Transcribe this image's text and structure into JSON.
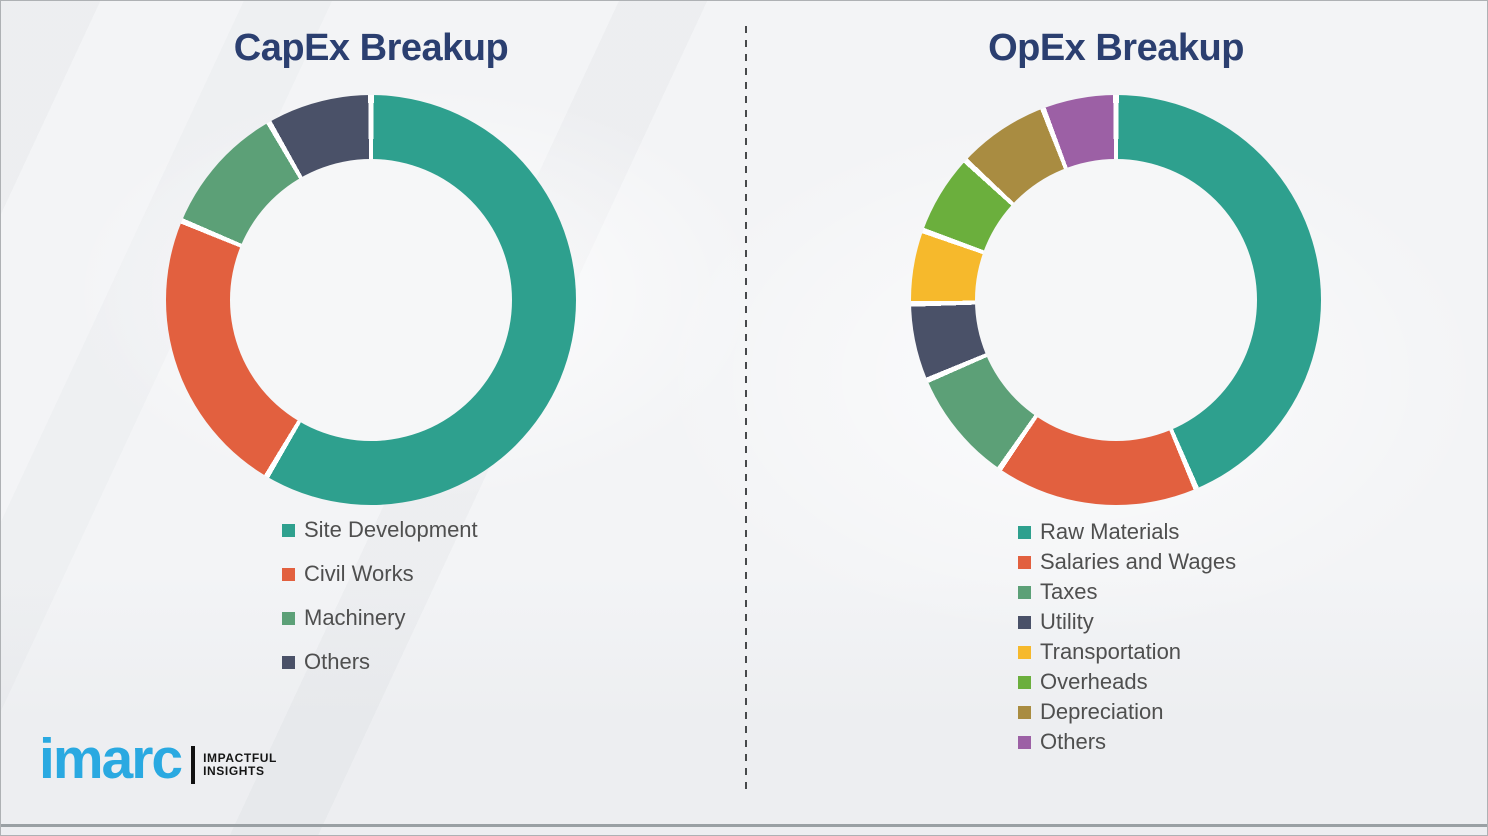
{
  "page": {
    "background_color": "#f3f4f6",
    "divider_style": "vertical dashed line",
    "divider_color": "#47494b",
    "bottom_rule_color": "#9aa0a4"
  },
  "titles": {
    "color": "#2b3f70"
  },
  "legend": {
    "text_color": "#4f4f4f"
  },
  "chart_data": [
    {
      "type": "pie",
      "variant": "donut",
      "title": "CapEx Breakup",
      "direction": "clockwise",
      "start_angle_deg": 0,
      "unit": "percent (estimated from arc angles, no labels shown)",
      "legend_position": "below",
      "categories": [
        "Site Development",
        "Civil Works",
        "Machinery",
        "Others"
      ],
      "values": [
        58.5,
        22.8,
        10.4,
        8.3
      ],
      "colors": [
        "#2ea08e",
        "#e2603f",
        "#5ca077",
        "#4a5168"
      ],
      "segment_gap_color": "#ffffff"
    },
    {
      "type": "pie",
      "variant": "donut",
      "title": "OpEx Breakup",
      "direction": "clockwise",
      "start_angle_deg": 0,
      "unit": "percent (estimated from arc angles, no labels shown)",
      "legend_position": "below",
      "categories": [
        "Raw Materials",
        "Salaries and Wages",
        "Taxes",
        "Utility",
        "Transportation",
        "Overheads",
        "Depreciation",
        "Others"
      ],
      "values": [
        43.6,
        16.0,
        9.0,
        6.1,
        5.8,
        6.4,
        7.3,
        5.8
      ],
      "colors": [
        "#2ea08e",
        "#e2603f",
        "#5ca077",
        "#4a5168",
        "#f6b92c",
        "#6baf3d",
        "#a98c41",
        "#9c60a5"
      ],
      "segment_gap_color": "#ffffff"
    }
  ],
  "logo": {
    "brand": "imarc",
    "brand_color": "#2aa9e1",
    "tagline_line1": "IMPACTFUL",
    "tagline_line2": "INSIGHTS",
    "tagline_color": "#151515"
  }
}
